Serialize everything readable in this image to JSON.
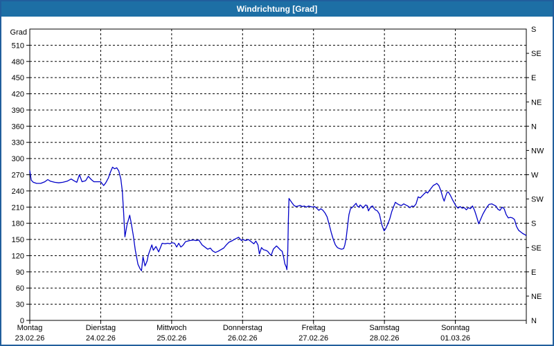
{
  "window": {
    "title": "Windrichtung [Grad]",
    "title_bar_color": "#1d6fa5",
    "border_color": "#215e9c"
  },
  "chart_data": {
    "type": "line",
    "title": "Windrichtung [Grad]",
    "grid": {
      "style": "dashed",
      "color": "#000000"
    },
    "y_axis": {
      "label": "Grad",
      "min": 0,
      "max": 540,
      "tick_step": 30,
      "ticks": [
        0,
        30,
        60,
        90,
        120,
        150,
        180,
        210,
        240,
        270,
        300,
        330,
        360,
        390,
        420,
        450,
        480,
        510
      ]
    },
    "right_axis": {
      "tick_step": 45,
      "ticks": [
        {
          "value": 0,
          "label": "N"
        },
        {
          "value": 45,
          "label": "NE"
        },
        {
          "value": 90,
          "label": "E"
        },
        {
          "value": 135,
          "label": "SE"
        },
        {
          "value": 180,
          "label": "S"
        },
        {
          "value": 225,
          "label": "SW"
        },
        {
          "value": 270,
          "label": "W"
        },
        {
          "value": 315,
          "label": "NW"
        },
        {
          "value": 360,
          "label": "N"
        },
        {
          "value": 405,
          "label": "NE"
        },
        {
          "value": 450,
          "label": "E"
        },
        {
          "value": 495,
          "label": "SE"
        },
        {
          "value": 540,
          "label": "S"
        }
      ]
    },
    "x_axis": {
      "total_hours": 168,
      "hours_per_day": 24,
      "days": [
        {
          "name": "Montag",
          "date": "23.02.26"
        },
        {
          "name": "Dienstag",
          "date": "24.02.26"
        },
        {
          "name": "Mittwoch",
          "date": "25.02.26"
        },
        {
          "name": "Donnerstag",
          "date": "26.02.26"
        },
        {
          "name": "Freitag",
          "date": "27.02.26"
        },
        {
          "name": "Samstag",
          "date": "28.02.26"
        },
        {
          "name": "Sonntag",
          "date": "01.03.26"
        }
      ]
    },
    "series": [
      {
        "name": "Windrichtung",
        "color": "#0000c8",
        "points": [
          [
            0,
            278
          ],
          [
            0.5,
            260
          ],
          [
            1.2,
            256
          ],
          [
            2.3,
            254
          ],
          [
            3.7,
            254
          ],
          [
            5.1,
            257
          ],
          [
            6.1,
            261
          ],
          [
            7,
            258
          ],
          [
            8.4,
            256
          ],
          [
            9.8,
            255
          ],
          [
            11.2,
            256
          ],
          [
            12.6,
            258
          ],
          [
            14,
            262
          ],
          [
            14.9,
            259
          ],
          [
            15.9,
            256
          ],
          [
            16.8,
            270
          ],
          [
            17.7,
            257
          ],
          [
            18.9,
            259
          ],
          [
            19.8,
            267
          ],
          [
            20.8,
            261
          ],
          [
            21.7,
            257
          ],
          [
            22.9,
            257
          ],
          [
            24,
            257
          ],
          [
            25,
            250
          ],
          [
            25.7,
            255
          ],
          [
            26.6,
            264
          ],
          [
            27.3,
            275
          ],
          [
            28,
            284
          ],
          [
            28.7,
            281
          ],
          [
            29.4,
            283
          ],
          [
            30.1,
            277
          ],
          [
            30.8,
            262
          ],
          [
            31.3,
            240
          ],
          [
            31.7,
            205
          ],
          [
            32.2,
            155
          ],
          [
            32.9,
            177
          ],
          [
            33.8,
            195
          ],
          [
            34.3,
            181
          ],
          [
            35,
            158
          ],
          [
            35.7,
            130
          ],
          [
            36.6,
            104
          ],
          [
            37.3,
            96
          ],
          [
            37.8,
            92
          ],
          [
            38.3,
            118
          ],
          [
            39,
            101
          ],
          [
            39.7,
            110
          ],
          [
            40.1,
            121
          ],
          [
            41.3,
            140
          ],
          [
            41.8,
            130
          ],
          [
            42.7,
            137
          ],
          [
            43.6,
            127
          ],
          [
            44.8,
            143
          ],
          [
            45.7,
            142
          ],
          [
            46.7,
            143
          ],
          [
            47.4,
            142
          ],
          [
            48.1,
            144
          ],
          [
            49,
            143
          ],
          [
            49.7,
            136
          ],
          [
            50.4,
            143
          ],
          [
            51.1,
            136
          ],
          [
            51.8,
            139
          ],
          [
            52.7,
            146
          ],
          [
            54.1,
            148
          ],
          [
            55.3,
            149
          ],
          [
            56.2,
            148
          ],
          [
            57.2,
            149
          ],
          [
            58.3,
            140
          ],
          [
            59.5,
            135
          ],
          [
            60.2,
            132
          ],
          [
            61.1,
            134
          ],
          [
            61.8,
            129
          ],
          [
            62.8,
            126
          ],
          [
            63.7,
            128
          ],
          [
            64.6,
            131
          ],
          [
            65.6,
            134
          ],
          [
            66.5,
            140
          ],
          [
            67.4,
            145
          ],
          [
            68.6,
            148
          ],
          [
            69.5,
            151
          ],
          [
            70.7,
            154
          ],
          [
            71.6,
            148
          ],
          [
            72.1,
            150
          ],
          [
            73,
            148
          ],
          [
            74,
            150
          ],
          [
            74.9,
            146
          ],
          [
            75.8,
            142
          ],
          [
            76.5,
            147
          ],
          [
            77.2,
            140
          ],
          [
            77.7,
            123
          ],
          [
            78.4,
            135
          ],
          [
            79.1,
            131
          ],
          [
            79.8,
            130
          ],
          [
            80.5,
            128
          ],
          [
            81.2,
            123
          ],
          [
            81.7,
            121
          ],
          [
            82.4,
            132
          ],
          [
            83.1,
            136
          ],
          [
            83.5,
            138
          ],
          [
            84.2,
            134
          ],
          [
            84.9,
            130
          ],
          [
            85.4,
            128
          ],
          [
            85.9,
            117
          ],
          [
            86.3,
            105
          ],
          [
            86.8,
            99
          ],
          [
            87,
            94
          ],
          [
            87.3,
            130
          ],
          [
            87.5,
            185
          ],
          [
            87.7,
            226
          ],
          [
            88.2,
            222
          ],
          [
            88.7,
            218
          ],
          [
            89.4,
            213
          ],
          [
            90.1,
            211
          ],
          [
            90.8,
            212
          ],
          [
            91.5,
            213
          ],
          [
            92.2,
            211
          ],
          [
            92.9,
            212
          ],
          [
            93.6,
            210
          ],
          [
            94.3,
            212
          ],
          [
            95,
            211
          ],
          [
            95.7,
            210
          ],
          [
            96.4,
            211
          ],
          [
            97.1,
            208
          ],
          [
            97.8,
            204
          ],
          [
            98.5,
            207
          ],
          [
            99.2,
            204
          ],
          [
            99.9,
            199
          ],
          [
            100.6,
            192
          ],
          [
            101.3,
            178
          ],
          [
            102,
            163
          ],
          [
            102.7,
            150
          ],
          [
            103.4,
            140
          ],
          [
            104.1,
            135
          ],
          [
            104.8,
            133
          ],
          [
            105.5,
            132
          ],
          [
            106.2,
            133
          ],
          [
            106.6,
            140
          ],
          [
            107.1,
            155
          ],
          [
            107.6,
            178
          ],
          [
            108,
            196
          ],
          [
            108.5,
            207
          ],
          [
            109.2,
            210
          ],
          [
            109.9,
            214
          ],
          [
            110.4,
            217
          ],
          [
            110.8,
            212
          ],
          [
            111.3,
            210
          ],
          [
            111.8,
            214
          ],
          [
            112.2,
            212
          ],
          [
            112.7,
            208
          ],
          [
            113.2,
            211
          ],
          [
            113.6,
            214
          ],
          [
            114.1,
            213
          ],
          [
            114.6,
            203
          ],
          [
            115,
            207
          ],
          [
            115.5,
            211
          ],
          [
            116,
            212
          ],
          [
            116.4,
            208
          ],
          [
            116.9,
            205
          ],
          [
            117.6,
            203
          ],
          [
            118.3,
            197
          ],
          [
            118.8,
            185
          ],
          [
            119.2,
            176
          ],
          [
            119.9,
            166
          ],
          [
            120.4,
            170
          ],
          [
            121.1,
            178
          ],
          [
            121.8,
            188
          ],
          [
            122.5,
            202
          ],
          [
            123.2,
            212
          ],
          [
            123.7,
            219
          ],
          [
            124.4,
            216
          ],
          [
            125.1,
            214
          ],
          [
            125.8,
            213
          ],
          [
            126.5,
            216
          ],
          [
            127.2,
            214
          ],
          [
            127.9,
            212
          ],
          [
            128.6,
            209
          ],
          [
            129.3,
            212
          ],
          [
            130,
            211
          ],
          [
            130.7,
            216
          ],
          [
            131.4,
            229
          ],
          [
            132.1,
            227
          ],
          [
            132.8,
            231
          ],
          [
            133.5,
            235
          ],
          [
            134.2,
            238
          ],
          [
            134.6,
            236
          ],
          [
            135.1,
            240
          ],
          [
            135.8,
            245
          ],
          [
            136.5,
            250
          ],
          [
            137.2,
            252
          ],
          [
            137.7,
            254
          ],
          [
            138.4,
            250
          ],
          [
            139.1,
            240
          ],
          [
            139.8,
            227
          ],
          [
            140.2,
            221
          ],
          [
            140.7,
            230
          ],
          [
            141.2,
            237
          ],
          [
            141.6,
            238
          ],
          [
            142.3,
            232
          ],
          [
            143,
            224
          ],
          [
            143.7,
            217
          ],
          [
            144.2,
            212
          ],
          [
            144.9,
            208
          ],
          [
            145.6,
            211
          ],
          [
            146.3,
            208
          ],
          [
            147,
            209
          ],
          [
            147.7,
            205
          ],
          [
            148.4,
            209
          ],
          [
            149.1,
            207
          ],
          [
            149.8,
            212
          ],
          [
            150.5,
            204
          ],
          [
            151.2,
            192
          ],
          [
            151.9,
            179
          ],
          [
            152.6,
            188
          ],
          [
            153.3,
            197
          ],
          [
            154,
            204
          ],
          [
            154.7,
            210
          ],
          [
            155.4,
            215
          ],
          [
            156.3,
            216
          ],
          [
            157,
            214
          ],
          [
            157.7,
            212
          ],
          [
            158.4,
            206
          ],
          [
            159.1,
            204
          ],
          [
            159.8,
            210
          ],
          [
            160.5,
            207
          ],
          [
            161.2,
            196
          ],
          [
            161.9,
            190
          ],
          [
            162.6,
            191
          ],
          [
            163.3,
            190
          ],
          [
            164,
            187
          ],
          [
            164.7,
            174
          ],
          [
            165.4,
            167
          ],
          [
            166.1,
            164
          ],
          [
            166.8,
            161
          ],
          [
            167.5,
            159
          ],
          [
            168,
            157
          ]
        ]
      }
    ]
  }
}
